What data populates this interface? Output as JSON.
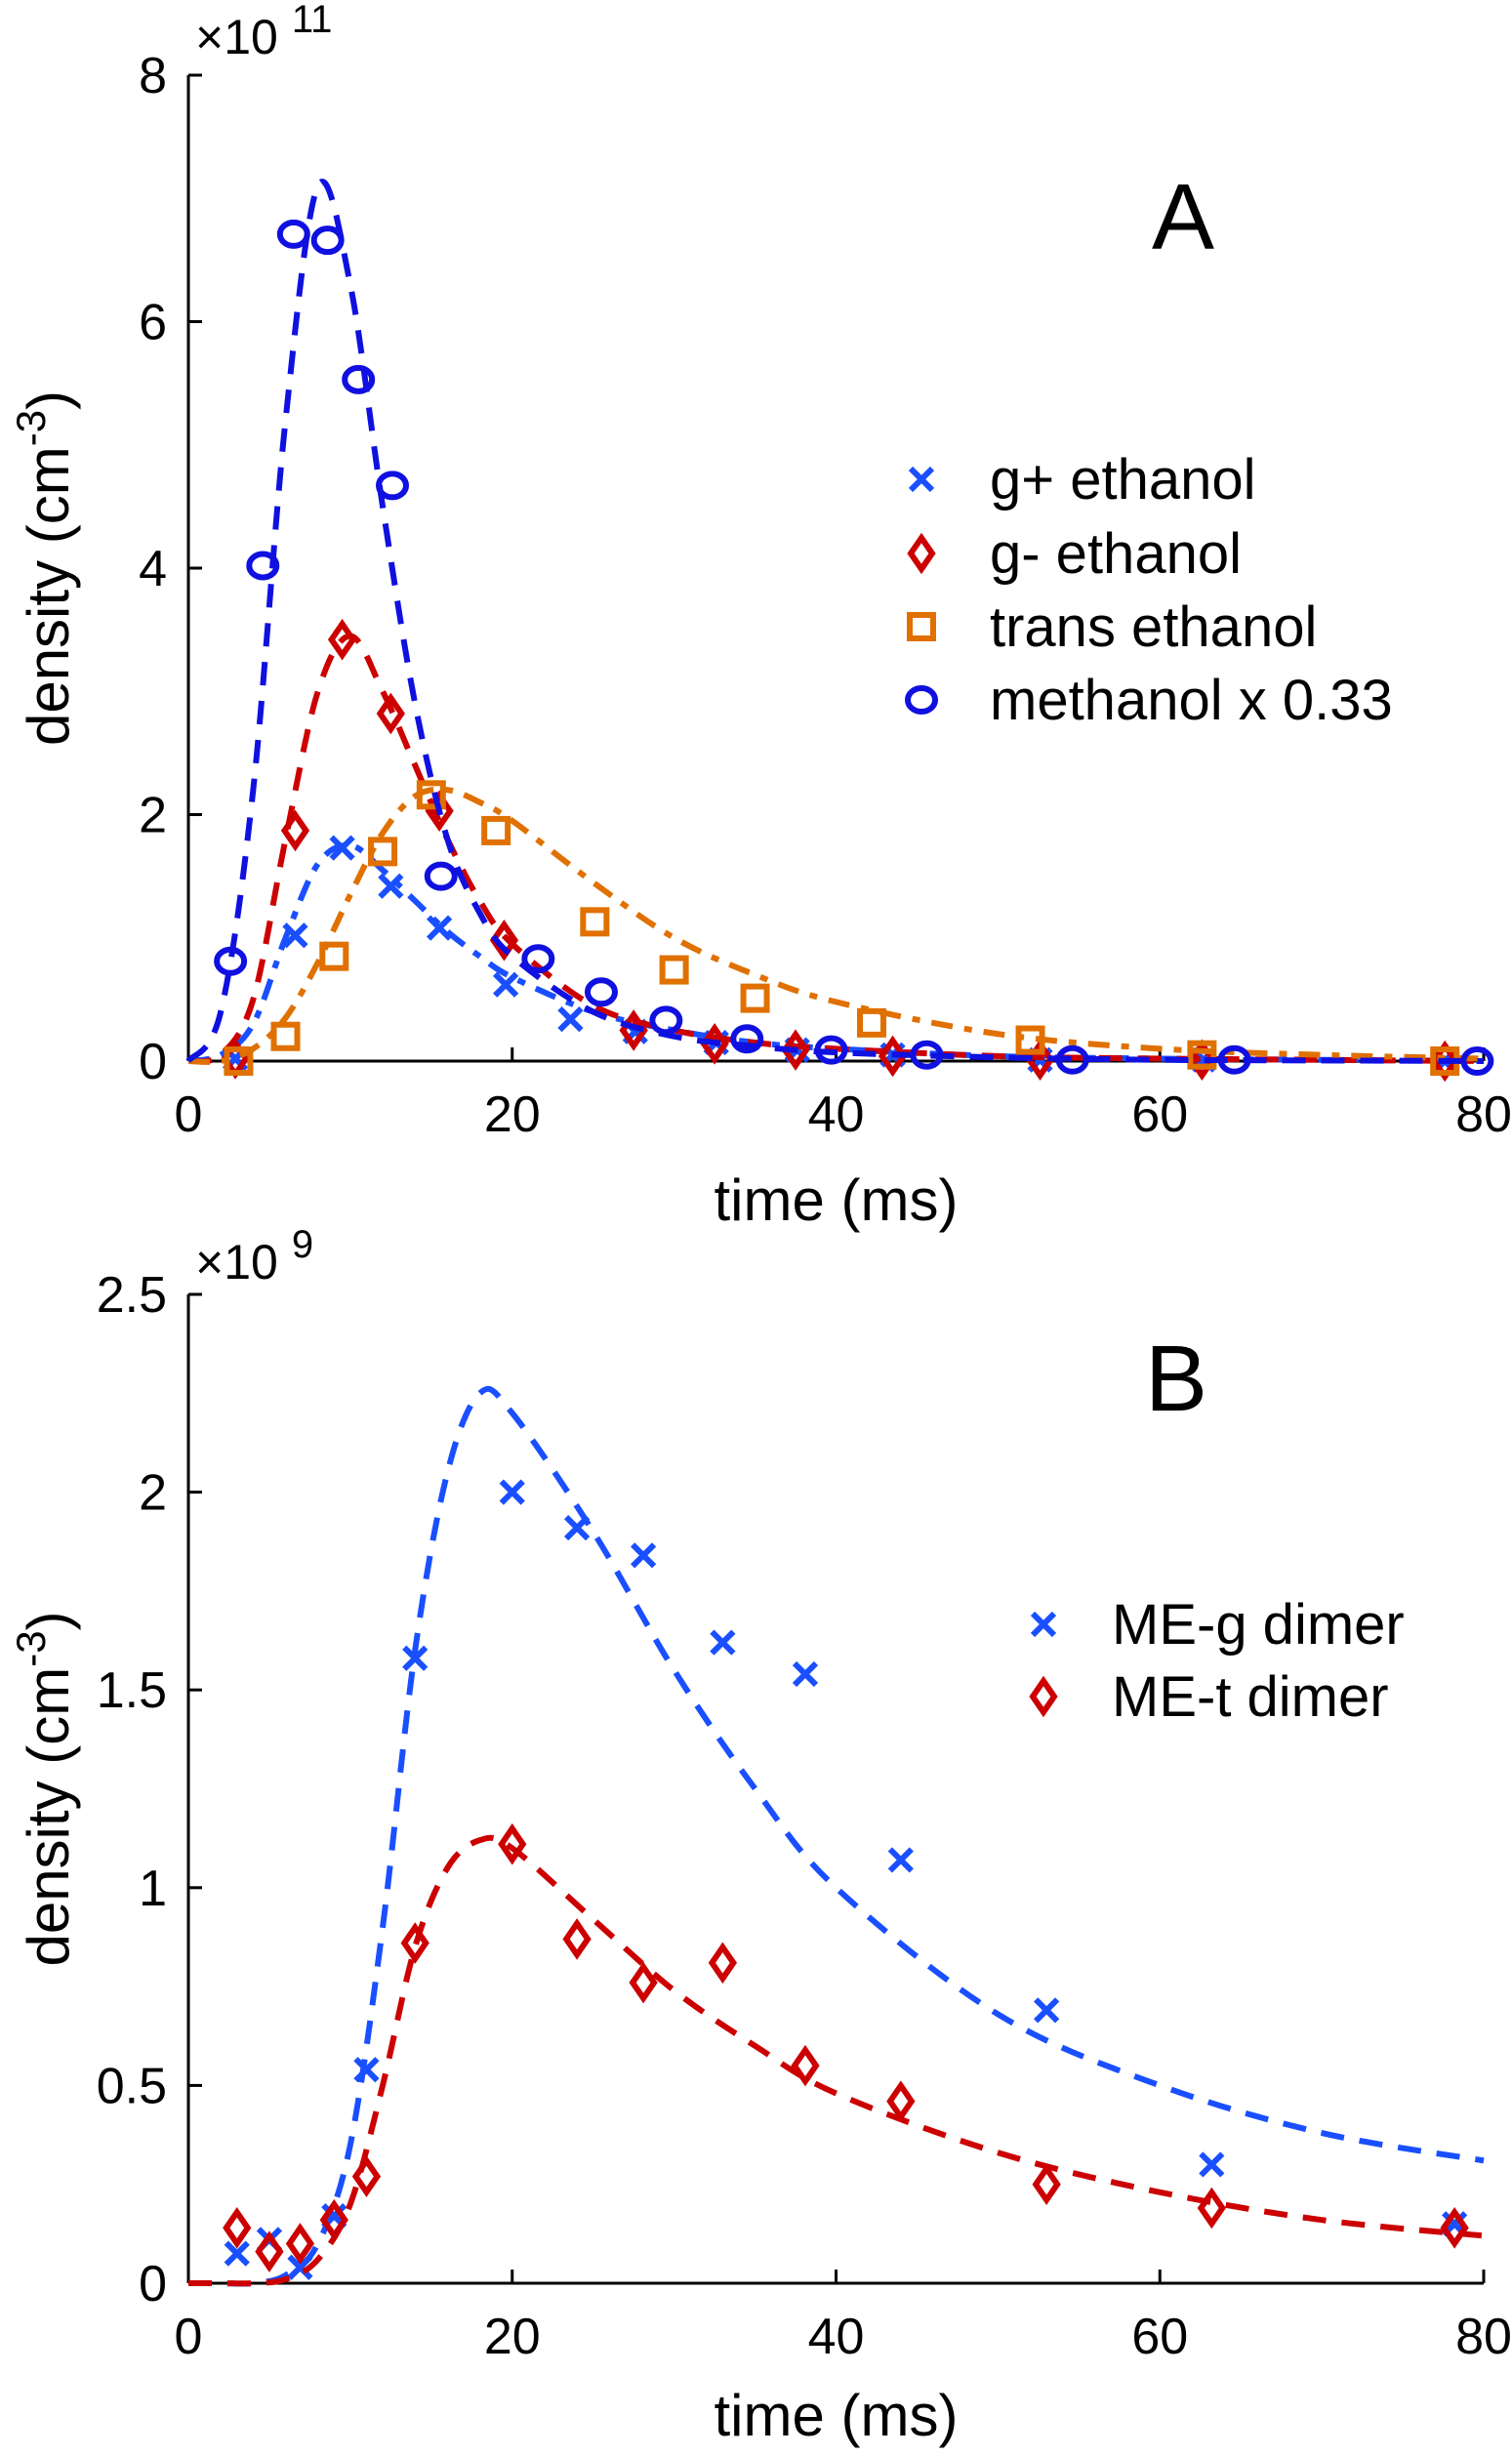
{
  "chart_data": [
    {
      "type": "scatter",
      "panel_label": "A",
      "xlabel": "time (ms)",
      "ylabel": "density (cm",
      "ylabel_sup": "-3",
      "ylabel_close": ")",
      "y_multiplier": "×10",
      "y_multiplier_exp": "11",
      "xlim": [
        0,
        80
      ],
      "ylim": [
        0,
        8
      ],
      "xticks": [
        0,
        20,
        40,
        60,
        80
      ],
      "yticks": [
        0,
        2,
        4,
        6,
        8
      ],
      "grid": false,
      "legend_position": "right",
      "series": [
        {
          "name": "g+ ethanol",
          "marker": "x",
          "color": "#1a4fff",
          "line": "dashdot",
          "x": [
            2.9,
            6.6,
            9.5,
            12.5,
            15.5,
            19.6,
            23.6,
            27.6,
            32.6,
            37.6,
            43.5,
            52.6,
            62.7,
            77.6
          ],
          "y": [
            0.02,
            1.02,
            1.73,
            1.42,
            1.08,
            0.62,
            0.34,
            0.24,
            0.15,
            0.09,
            0.05,
            0.01,
            0.01,
            0.0
          ],
          "fit_x": [
            0,
            2,
            4,
            6,
            8,
            10,
            12,
            14,
            16,
            18,
            20,
            25,
            30,
            35,
            40,
            50,
            60,
            70,
            80
          ],
          "fit_y": [
            0,
            0.05,
            0.3,
            1.0,
            1.6,
            1.75,
            1.55,
            1.3,
            1.05,
            0.85,
            0.68,
            0.4,
            0.25,
            0.15,
            0.1,
            0.04,
            0.02,
            0.01,
            0
          ]
        },
        {
          "name": "g- ethanol",
          "marker": "diamond",
          "color": "#cc0000",
          "line": "dashed",
          "x": [
            2.9,
            6.6,
            9.5,
            12.5,
            15.5,
            19.5,
            27.5,
            32.5,
            37.5,
            43.5,
            52.6,
            62.6,
            77.6
          ],
          "y": [
            0.02,
            1.87,
            3.42,
            2.82,
            2.03,
            0.98,
            0.25,
            0.14,
            0.09,
            0.04,
            0.01,
            0.01,
            0.0
          ],
          "fit_x": [
            0,
            2,
            4,
            6,
            8,
            10,
            12,
            14,
            16,
            18,
            20,
            25,
            30,
            35,
            40,
            50,
            60,
            70,
            80
          ],
          "fit_y": [
            0,
            0.05,
            0.5,
            1.8,
            3.0,
            3.45,
            3.0,
            2.4,
            1.8,
            1.3,
            0.95,
            0.45,
            0.25,
            0.15,
            0.1,
            0.04,
            0.02,
            0.01,
            0
          ]
        },
        {
          "name": "trans ethanol",
          "marker": "square",
          "color": "#e07000",
          "line": "dashdot",
          "x": [
            3.1,
            6.0,
            9.0,
            12.0,
            15.0,
            19.0,
            25.1,
            30.0,
            35.0,
            42.2,
            52.0,
            62.6,
            77.6
          ],
          "y": [
            0.0,
            0.2,
            0.85,
            1.7,
            2.16,
            1.87,
            1.13,
            0.74,
            0.51,
            0.31,
            0.17,
            0.05,
            0.0
          ],
          "fit_x": [
            0,
            2,
            4,
            6,
            8,
            10,
            12,
            14,
            16,
            18,
            20,
            25,
            30,
            35,
            40,
            50,
            60,
            70,
            80
          ],
          "fit_y": [
            0,
            0,
            0.1,
            0.35,
            0.8,
            1.35,
            1.85,
            2.15,
            2.2,
            2.1,
            1.95,
            1.45,
            1.0,
            0.7,
            0.48,
            0.22,
            0.1,
            0.05,
            0.02
          ]
        },
        {
          "name": "methanol x 0.33",
          "marker": "circle",
          "color": "#1010e0",
          "line": "dashed",
          "x": [
            2.6,
            4.6,
            6.5,
            8.6,
            10.5,
            12.6,
            15.6,
            21.6,
            25.5,
            29.5,
            34.5,
            39.7,
            45.6,
            54.6,
            64.6,
            79.6
          ],
          "y": [
            0.81,
            4.02,
            6.71,
            6.66,
            5.53,
            4.67,
            1.5,
            0.83,
            0.56,
            0.33,
            0.18,
            0.09,
            0.05,
            0.01,
            0.01,
            0.0
          ],
          "fit_x": [
            0,
            2,
            4,
            6,
            8,
            10,
            12,
            14,
            16,
            18,
            20,
            25,
            30,
            35,
            40,
            50,
            60,
            70,
            80
          ],
          "fit_y": [
            0,
            0.4,
            2.2,
            5.2,
            7.1,
            6.3,
            4.5,
            2.9,
            1.8,
            1.2,
            0.85,
            0.4,
            0.2,
            0.12,
            0.07,
            0.03,
            0.01,
            0.005,
            0
          ]
        }
      ]
    },
    {
      "type": "scatter",
      "panel_label": "B",
      "xlabel": "time (ms)",
      "ylabel": "density (cm",
      "ylabel_sup": "-3",
      "ylabel_close": ")",
      "y_multiplier": "×10",
      "y_multiplier_exp": "9",
      "xlim": [
        0,
        80
      ],
      "ylim": [
        0,
        2.5
      ],
      "xticks": [
        0,
        20,
        40,
        60,
        80
      ],
      "yticks": [
        0,
        0.5,
        1,
        1.5,
        2,
        2.5
      ],
      "grid": false,
      "legend_position": "right",
      "series": [
        {
          "name": "ME-g dimer",
          "marker": "x",
          "color": "#1a4fff",
          "line": "dashed",
          "x": [
            3.0,
            5.0,
            6.9,
            9.0,
            11.0,
            14.0,
            20.0,
            24.0,
            28.1,
            33.0,
            38.1,
            44.0,
            53.0,
            63.2,
            78.2
          ],
          "y": [
            0.075,
            0.11,
            0.04,
            0.17,
            0.54,
            1.58,
            2.0,
            1.91,
            1.84,
            1.62,
            1.54,
            1.07,
            0.69,
            0.3,
            0.15
          ],
          "fit_x": [
            0,
            2,
            4,
            6,
            8,
            10,
            12,
            14,
            16,
            18,
            20,
            25,
            30,
            35,
            40,
            50,
            60,
            70,
            80
          ],
          "fit_y": [
            0,
            0,
            0,
            0.02,
            0.1,
            0.35,
            0.9,
            1.6,
            2.05,
            2.25,
            2.2,
            1.9,
            1.55,
            1.25,
            1.0,
            0.68,
            0.5,
            0.38,
            0.31
          ]
        },
        {
          "name": "ME-t dimer",
          "marker": "diamond",
          "color": "#cc0000",
          "line": "dashed",
          "x": [
            3.0,
            5.0,
            6.9,
            9.0,
            11.0,
            14.0,
            20.0,
            24.0,
            28.1,
            33.0,
            38.1,
            44.0,
            53.0,
            63.2,
            78.2
          ],
          "y": [
            0.14,
            0.08,
            0.1,
            0.16,
            0.27,
            0.86,
            1.11,
            0.87,
            0.76,
            0.81,
            0.55,
            0.46,
            0.25,
            0.19,
            0.14
          ],
          "fit_x": [
            0,
            2,
            4,
            6,
            8,
            10,
            12,
            14,
            16,
            18,
            20,
            25,
            30,
            35,
            40,
            50,
            60,
            70,
            80
          ],
          "fit_y": [
            0,
            0,
            0,
            0.01,
            0.06,
            0.2,
            0.5,
            0.85,
            1.05,
            1.12,
            1.1,
            0.92,
            0.74,
            0.6,
            0.48,
            0.33,
            0.23,
            0.16,
            0.12
          ]
        }
      ]
    }
  ]
}
